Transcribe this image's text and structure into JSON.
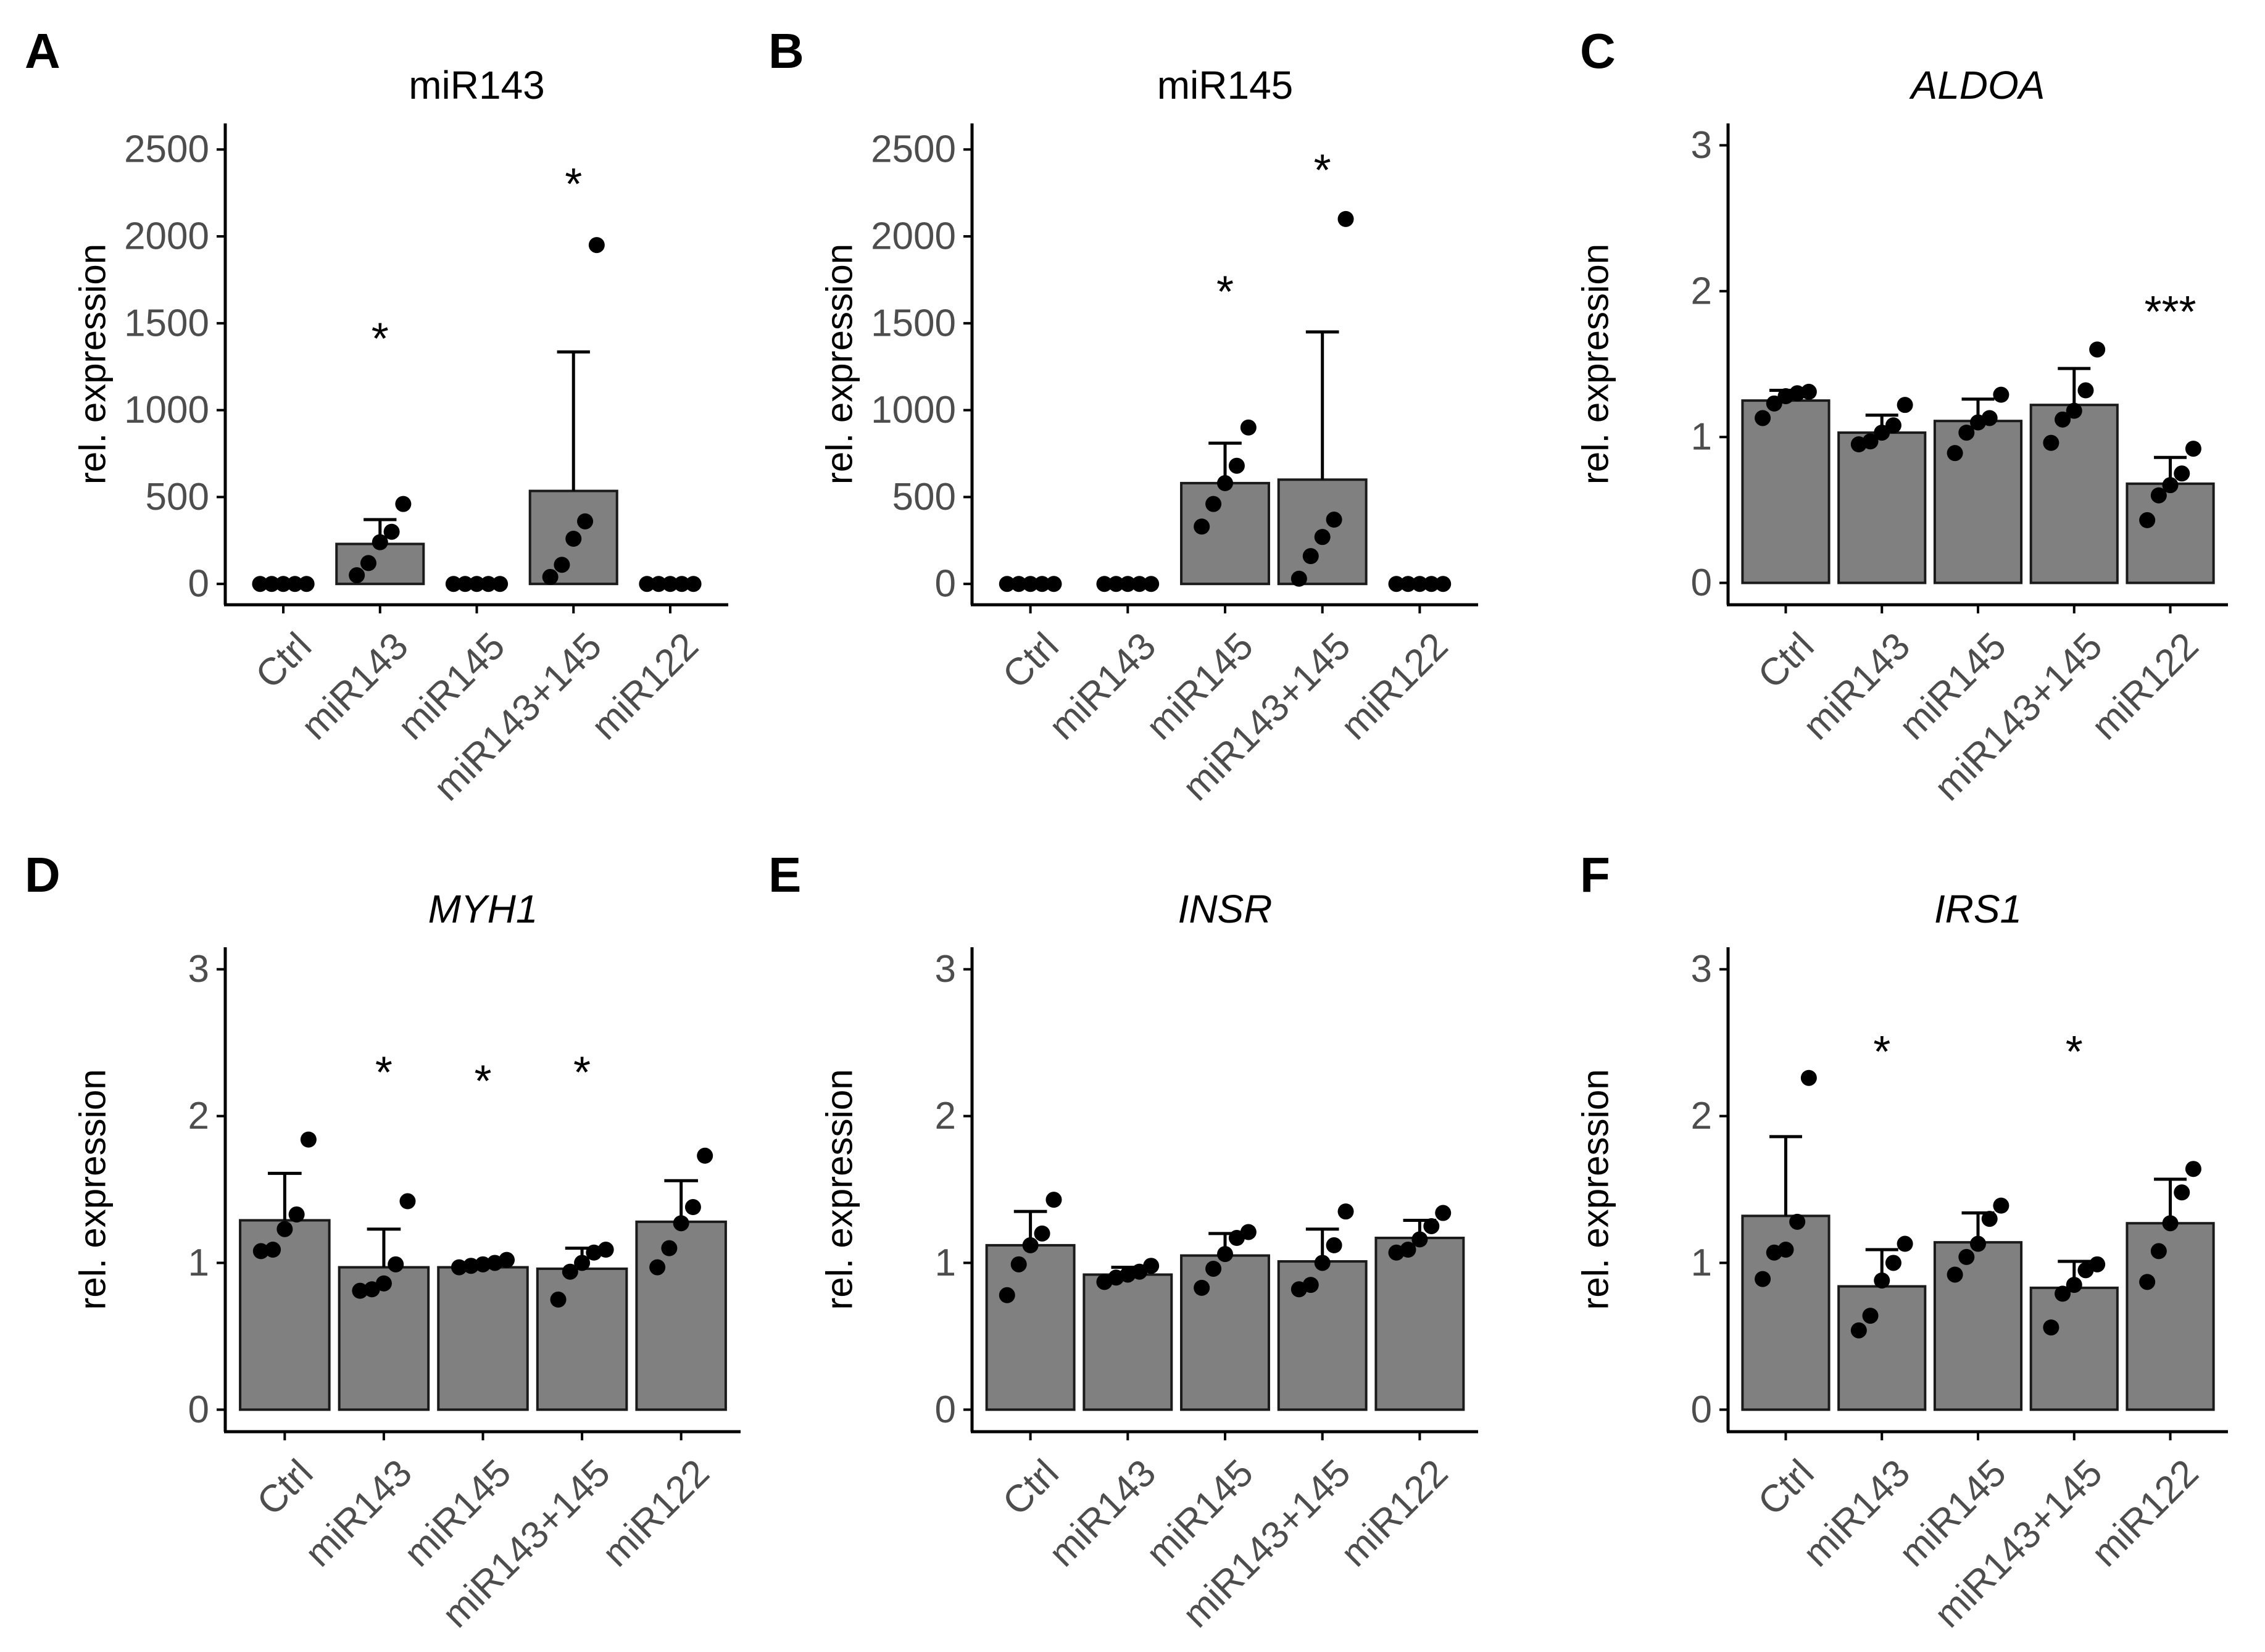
{
  "figure": {
    "colors": {
      "bar_fill": "#808080",
      "bar_stroke": "#1a1a1a",
      "point": "#000000",
      "axis": "#000000",
      "tick_text": "#4d4d4d"
    }
  },
  "chart_data": [
    {
      "panel": "A",
      "type": "bar",
      "title": "miR143",
      "title_italic": false,
      "ylabel": "rel. expression",
      "ylim": [
        -120,
        2650
      ],
      "yticks": [
        0,
        500,
        1000,
        1500,
        2000,
        2500
      ],
      "categories": [
        "Ctrl",
        "miR143",
        "miR145",
        "miR143+145",
        "miR122"
      ],
      "values": [
        0,
        230,
        0,
        535,
        0
      ],
      "error_upper": [
        null,
        370,
        null,
        1335,
        null
      ],
      "points": [
        [
          0,
          0,
          0,
          0,
          0
        ],
        [
          50,
          120,
          240,
          300,
          460
        ],
        [
          0,
          0,
          0,
          0,
          0
        ],
        [
          40,
          110,
          260,
          360,
          1950
        ],
        [
          0,
          0,
          0,
          0,
          0
        ]
      ],
      "significance": [
        "",
        "*",
        "",
        "*",
        ""
      ],
      "sig_y": [
        null,
        1430,
        null,
        2320,
        null
      ]
    },
    {
      "panel": "B",
      "type": "bar",
      "title": "miR145",
      "title_italic": false,
      "ylabel": "rel. expression",
      "ylim": [
        -120,
        2650
      ],
      "yticks": [
        0,
        500,
        1000,
        1500,
        2000,
        2500
      ],
      "categories": [
        "Ctrl",
        "miR143",
        "miR145",
        "miR143+145",
        "miR122"
      ],
      "values": [
        0,
        0,
        580,
        600,
        0
      ],
      "error_upper": [
        null,
        null,
        810,
        1450,
        null
      ],
      "points": [
        [
          0,
          0,
          0,
          0,
          0
        ],
        [
          0,
          0,
          0,
          0,
          0
        ],
        [
          330,
          460,
          580,
          680,
          900
        ],
        [
          30,
          160,
          270,
          370,
          2100
        ],
        [
          0,
          0,
          0,
          0,
          0
        ]
      ],
      "significance": [
        "",
        "",
        "*",
        "*",
        ""
      ],
      "sig_y": [
        null,
        null,
        1700,
        2400,
        null
      ]
    },
    {
      "panel": "C",
      "type": "bar",
      "title": "ALDOA",
      "title_italic": true,
      "ylabel": "rel. expression",
      "ylim": [
        -0.15,
        3.15
      ],
      "yticks": [
        0,
        1,
        2,
        3
      ],
      "categories": [
        "Ctrl",
        "miR143",
        "miR145",
        "miR143+145",
        "miR122"
      ],
      "values": [
        1.25,
        1.03,
        1.11,
        1.22,
        0.68
      ],
      "error_upper": [
        1.32,
        1.15,
        1.26,
        1.47,
        0.86
      ],
      "points": [
        [
          1.13,
          1.23,
          1.28,
          1.3,
          1.31
        ],
        [
          0.95,
          0.97,
          1.03,
          1.08,
          1.22
        ],
        [
          0.89,
          1.03,
          1.1,
          1.13,
          1.29
        ],
        [
          0.96,
          1.12,
          1.18,
          1.32,
          1.6
        ],
        [
          0.43,
          0.6,
          0.67,
          0.75,
          0.92
        ]
      ],
      "significance": [
        "",
        "",
        "",
        "",
        "***"
      ],
      "sig_y": [
        null,
        null,
        null,
        null,
        1.88
      ]
    },
    {
      "panel": "D",
      "type": "bar",
      "title": "MYH1",
      "title_italic": true,
      "ylabel": "rel. expression",
      "ylim": [
        -0.15,
        3.15
      ],
      "yticks": [
        0,
        1,
        2,
        3
      ],
      "categories": [
        "Ctrl",
        "miR143",
        "miR145",
        "miR143+145",
        "miR122"
      ],
      "values": [
        1.29,
        0.97,
        0.97,
        0.96,
        1.28
      ],
      "error_upper": [
        1.61,
        1.23,
        1.01,
        1.1,
        1.56
      ],
      "points": [
        [
          1.08,
          1.09,
          1.23,
          1.33,
          1.84
        ],
        [
          0.81,
          0.82,
          0.86,
          0.99,
          1.42
        ],
        [
          0.97,
          0.98,
          0.99,
          1.0,
          1.02
        ],
        [
          0.75,
          0.94,
          1.0,
          1.07,
          1.09
        ],
        [
          0.97,
          1.1,
          1.27,
          1.38,
          1.73
        ]
      ],
      "significance": [
        "",
        "*",
        "*",
        "*",
        ""
      ],
      "sig_y": [
        null,
        2.32,
        2.26,
        2.32,
        null
      ]
    },
    {
      "panel": "E",
      "type": "bar",
      "title": "INSR",
      "title_italic": true,
      "ylabel": "rel. expression",
      "ylim": [
        -0.15,
        3.15
      ],
      "yticks": [
        0,
        1,
        2,
        3
      ],
      "categories": [
        "Ctrl",
        "miR143",
        "miR145",
        "miR143+145",
        "miR122"
      ],
      "values": [
        1.12,
        0.92,
        1.05,
        1.01,
        1.17
      ],
      "error_upper": [
        1.35,
        0.97,
        1.2,
        1.23,
        1.29
      ],
      "points": [
        [
          0.78,
          0.99,
          1.12,
          1.2,
          1.43
        ],
        [
          0.87,
          0.9,
          0.92,
          0.94,
          0.98
        ],
        [
          0.83,
          0.96,
          1.06,
          1.17,
          1.21
        ],
        [
          0.82,
          0.85,
          1.0,
          1.12,
          1.35
        ],
        [
          1.07,
          1.09,
          1.16,
          1.25,
          1.34
        ]
      ],
      "significance": [
        "",
        "",
        "",
        "",
        ""
      ],
      "sig_y": [
        null,
        null,
        null,
        null,
        null
      ]
    },
    {
      "panel": "F",
      "type": "bar",
      "title": "IRS1",
      "title_italic": true,
      "ylabel": "rel. expression",
      "ylim": [
        -0.15,
        3.15
      ],
      "yticks": [
        0,
        1,
        2,
        3
      ],
      "categories": [
        "Ctrl",
        "miR143",
        "miR145",
        "miR143+145",
        "miR122"
      ],
      "values": [
        1.32,
        0.84,
        1.14,
        0.83,
        1.27
      ],
      "error_upper": [
        1.86,
        1.09,
        1.34,
        1.01,
        1.57
      ],
      "points": [
        [
          0.89,
          1.07,
          1.09,
          1.28,
          2.26
        ],
        [
          0.54,
          0.64,
          0.88,
          1.0,
          1.13
        ],
        [
          0.92,
          1.04,
          1.13,
          1.3,
          1.39
        ],
        [
          0.56,
          0.79,
          0.85,
          0.95,
          0.99
        ],
        [
          0.87,
          1.08,
          1.27,
          1.48,
          1.64
        ]
      ],
      "significance": [
        "",
        "*",
        "",
        "*",
        ""
      ],
      "sig_y": [
        null,
        2.46,
        null,
        2.46,
        null
      ]
    }
  ]
}
